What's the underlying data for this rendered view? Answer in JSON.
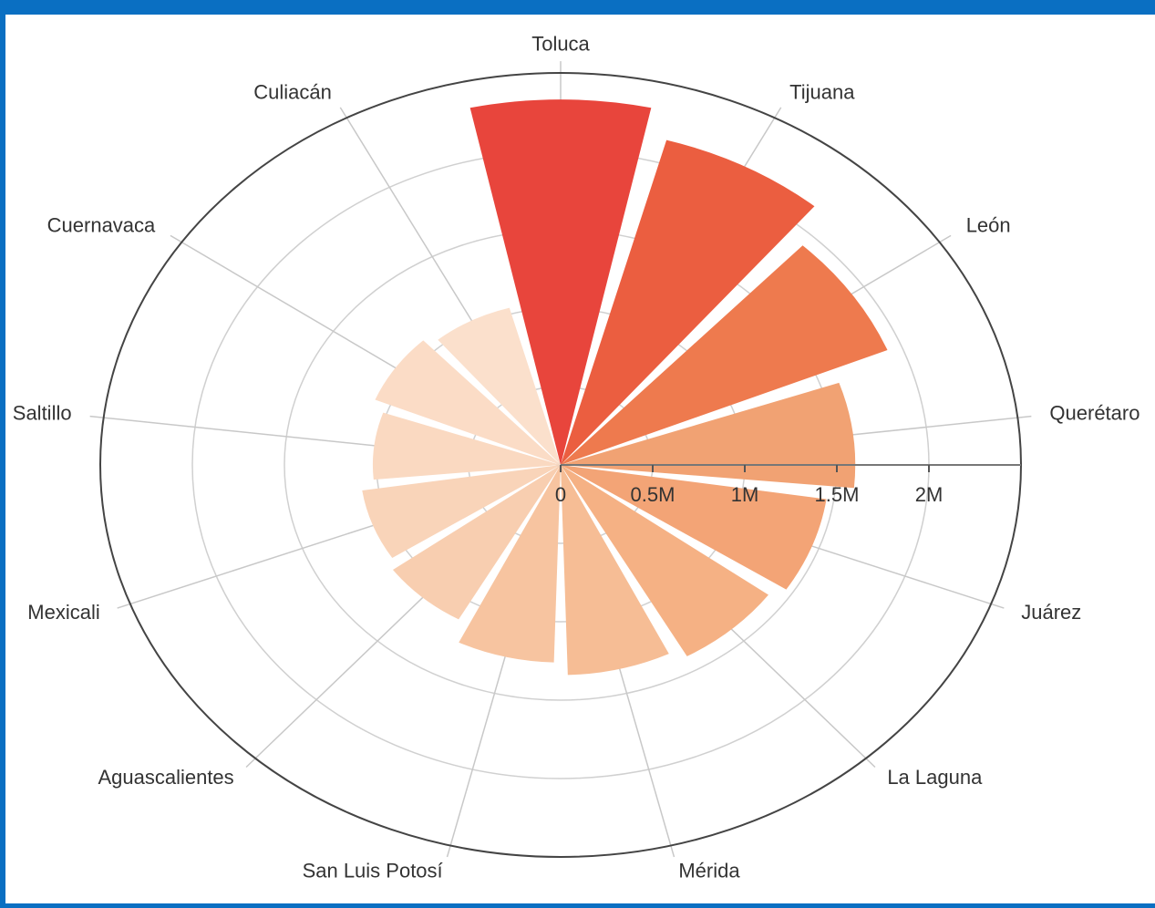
{
  "chart_data": {
    "type": "polar-bar",
    "categories": [
      "Toluca",
      "Tijuana",
      "León",
      "Querétaro",
      "Juárez",
      "La Laguna",
      "Mérida",
      "San Luis Potosí",
      "Aguascalientes",
      "Mexicali",
      "Saltillo",
      "Cuernavaca",
      "Culiacán"
    ],
    "values": [
      2330000,
      2150000,
      1920000,
      1600000,
      1460000,
      1400000,
      1340000,
      1260000,
      1130000,
      1090000,
      1020000,
      1090000,
      1040000
    ],
    "colors": [
      "#e8453c",
      "#eb5e40",
      "#ee7a4e",
      "#f1a273",
      "#f3a476",
      "#f5b184",
      "#f6bd95",
      "#f7c4a0",
      "#f8ceb0",
      "#f9d4b9",
      "#fad9c1",
      "#fbdcc6",
      "#fbe0cc"
    ],
    "rlim": [
      0,
      2500000
    ],
    "rticks": [
      0,
      {
        "value": 500000,
        "label": "0.5M"
      },
      {
        "value": 1000000,
        "label": "1M"
      },
      {
        "value": 1500000,
        "label": "1.5M"
      },
      {
        "value": 2000000,
        "label": "2M"
      }
    ],
    "grid": true
  }
}
